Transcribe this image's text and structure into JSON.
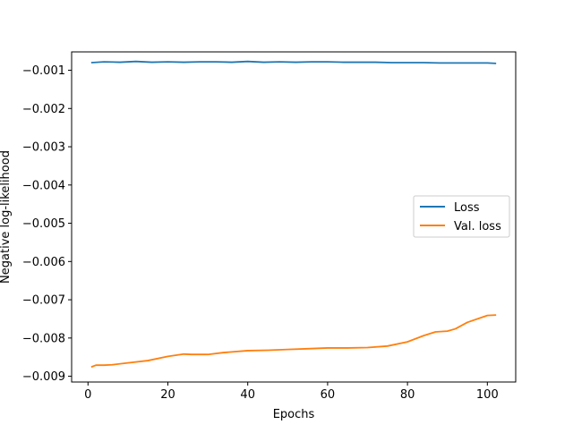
{
  "chart_data": {
    "type": "line",
    "title": "",
    "xlabel": "Epochs",
    "ylabel": "Negative log-likelihood",
    "xlim": [
      -4.1,
      107.1
    ],
    "ylim": [
      -0.00915,
      -0.00052
    ],
    "xticks": [
      0,
      20,
      40,
      60,
      80,
      100
    ],
    "xtick_labels": [
      "0",
      "20",
      "40",
      "60",
      "80",
      "100"
    ],
    "yticks": [
      -0.001,
      -0.002,
      -0.003,
      -0.004,
      -0.005,
      -0.006,
      -0.007,
      -0.008,
      -0.009
    ],
    "ytick_labels": [
      "−0.001",
      "−0.002",
      "−0.003",
      "−0.004",
      "−0.005",
      "−0.006",
      "−0.007",
      "−0.008",
      "−0.009"
    ],
    "grid": false,
    "legend_position": "center-right",
    "series": [
      {
        "name": "Loss",
        "color": "#1f77b4",
        "x": [
          1,
          4,
          8,
          12,
          16,
          20,
          24,
          28,
          32,
          36,
          40,
          44,
          48,
          52,
          56,
          60,
          64,
          68,
          72,
          76,
          80,
          84,
          88,
          92,
          96,
          100,
          102
        ],
        "y": [
          -0.0008,
          -0.00078,
          -0.00079,
          -0.00077,
          -0.00079,
          -0.00078,
          -0.00079,
          -0.00078,
          -0.00078,
          -0.00079,
          -0.00077,
          -0.00079,
          -0.00078,
          -0.00079,
          -0.00078,
          -0.00078,
          -0.00079,
          -0.00079,
          -0.00079,
          -0.0008,
          -0.0008,
          -0.0008,
          -0.00081,
          -0.00081,
          -0.00081,
          -0.00081,
          -0.00082
        ]
      },
      {
        "name": "Val. loss",
        "color": "#ff7f0e",
        "x": [
          1,
          2,
          4,
          6,
          10,
          15,
          20,
          24,
          26,
          30,
          34,
          40,
          45,
          50,
          55,
          60,
          65,
          70,
          75,
          80,
          84,
          87,
          90,
          92,
          95,
          100,
          102
        ],
        "y": [
          -0.00875,
          -0.00871,
          -0.00871,
          -0.0087,
          -0.00865,
          -0.00859,
          -0.00848,
          -0.00842,
          -0.00843,
          -0.00843,
          -0.00838,
          -0.00833,
          -0.00832,
          -0.0083,
          -0.00828,
          -0.00826,
          -0.00826,
          -0.00825,
          -0.00821,
          -0.0081,
          -0.00794,
          -0.00784,
          -0.00782,
          -0.00776,
          -0.00759,
          -0.00741,
          -0.0074
        ]
      }
    ]
  }
}
